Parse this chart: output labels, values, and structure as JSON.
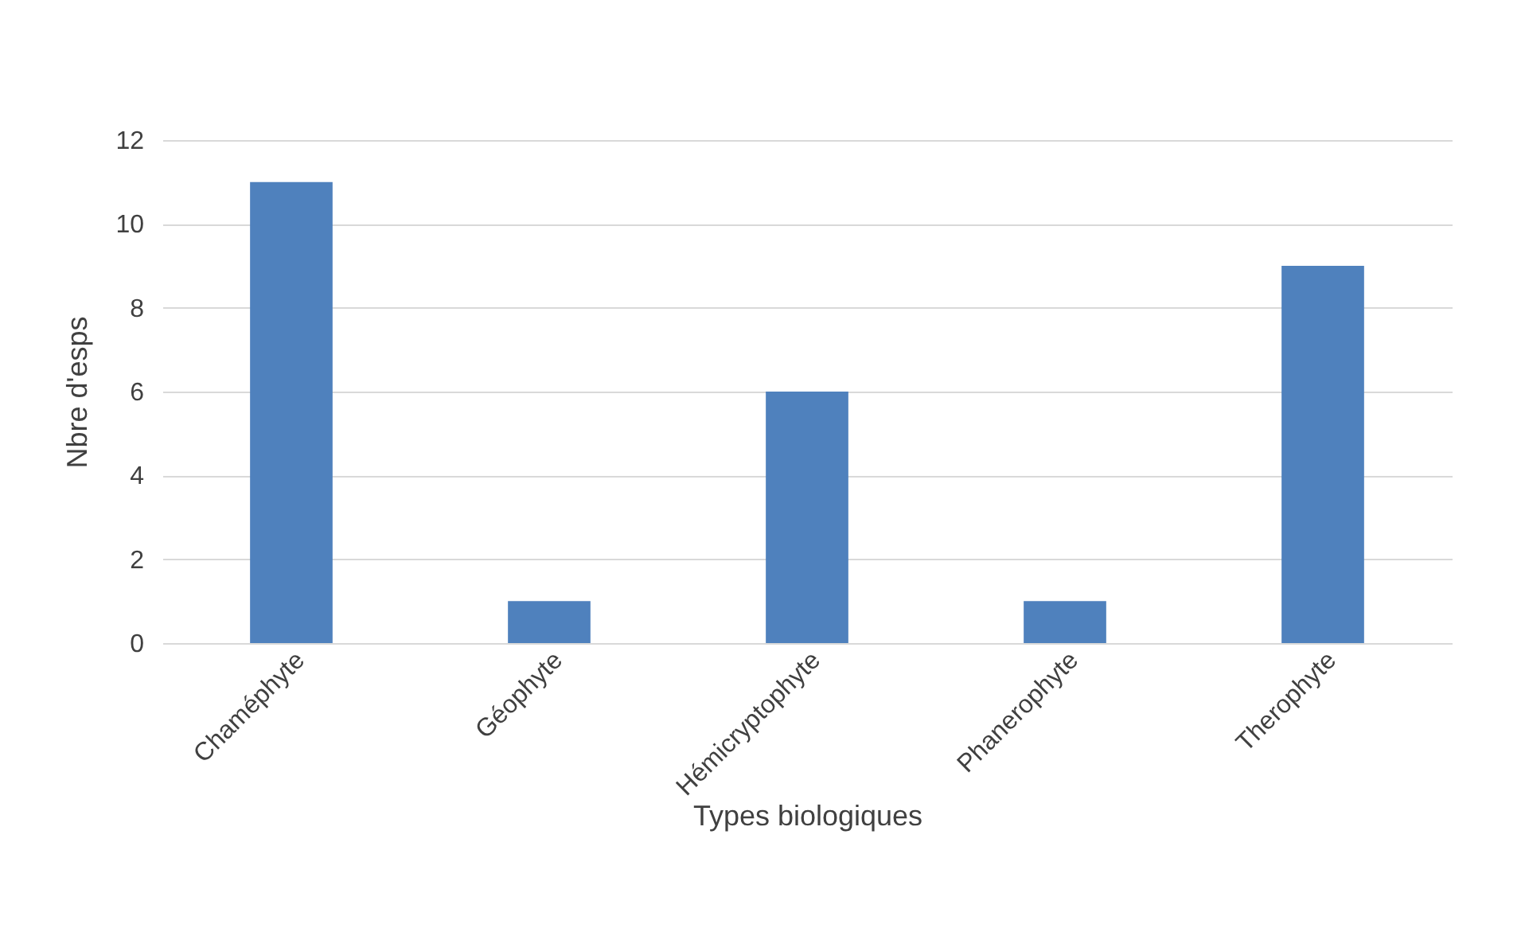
{
  "chart_data": {
    "type": "bar",
    "xlabel": "Types biologiques",
    "ylabel": "Nbre d'esps",
    "categories": [
      "Chaméphyte",
      "Géophyte",
      "Hémicryptophyte",
      "Phanerophyte",
      "Therophyte"
    ],
    "values": [
      11,
      1,
      6,
      1,
      9
    ],
    "color": "#4f81bd",
    "ylim": [
      0,
      12
    ],
    "yticks": [
      0,
      2,
      4,
      6,
      8,
      10,
      12
    ],
    "grid": "y"
  }
}
